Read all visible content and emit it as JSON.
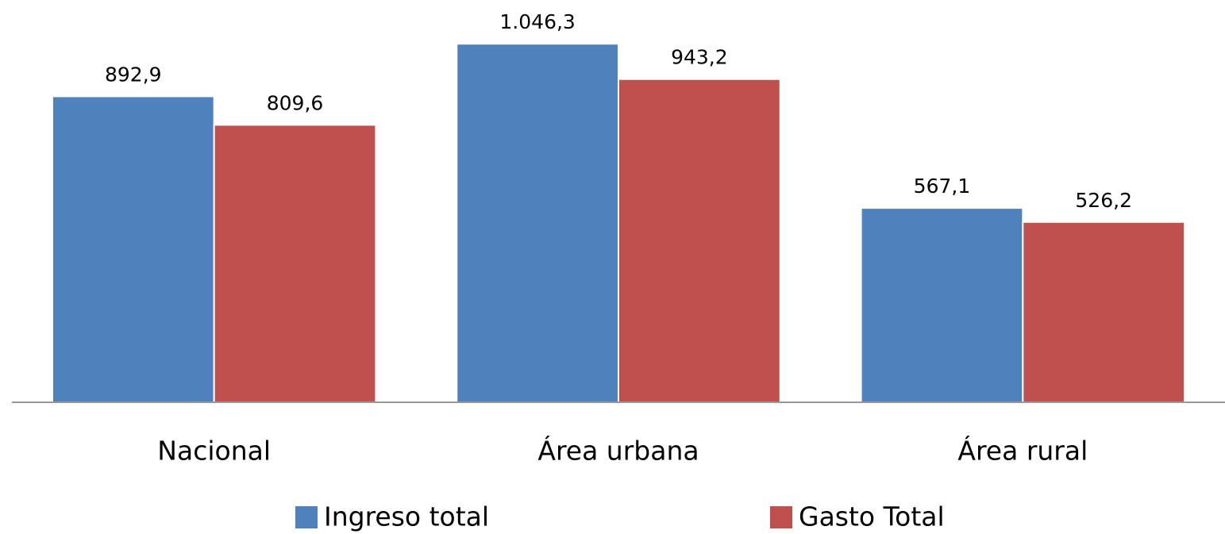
{
  "chart_data": {
    "type": "bar",
    "categories": [
      "Nacional",
      "Área urbana",
      "Área rural"
    ],
    "series": [
      {
        "name": "Ingreso total",
        "color": "#4f81bd",
        "values": [
          892.9,
          1046.3,
          567.1
        ],
        "value_labels": [
          "892,9",
          "1.046,3",
          "567,1"
        ]
      },
      {
        "name": "Gasto Total",
        "color": "#c0504d",
        "values": [
          809.6,
          943.2,
          526.2
        ],
        "value_labels": [
          "809,6",
          "943,2",
          "526,2"
        ]
      }
    ],
    "ylim": [
      0,
      1100
    ],
    "legend": "bottom"
  }
}
